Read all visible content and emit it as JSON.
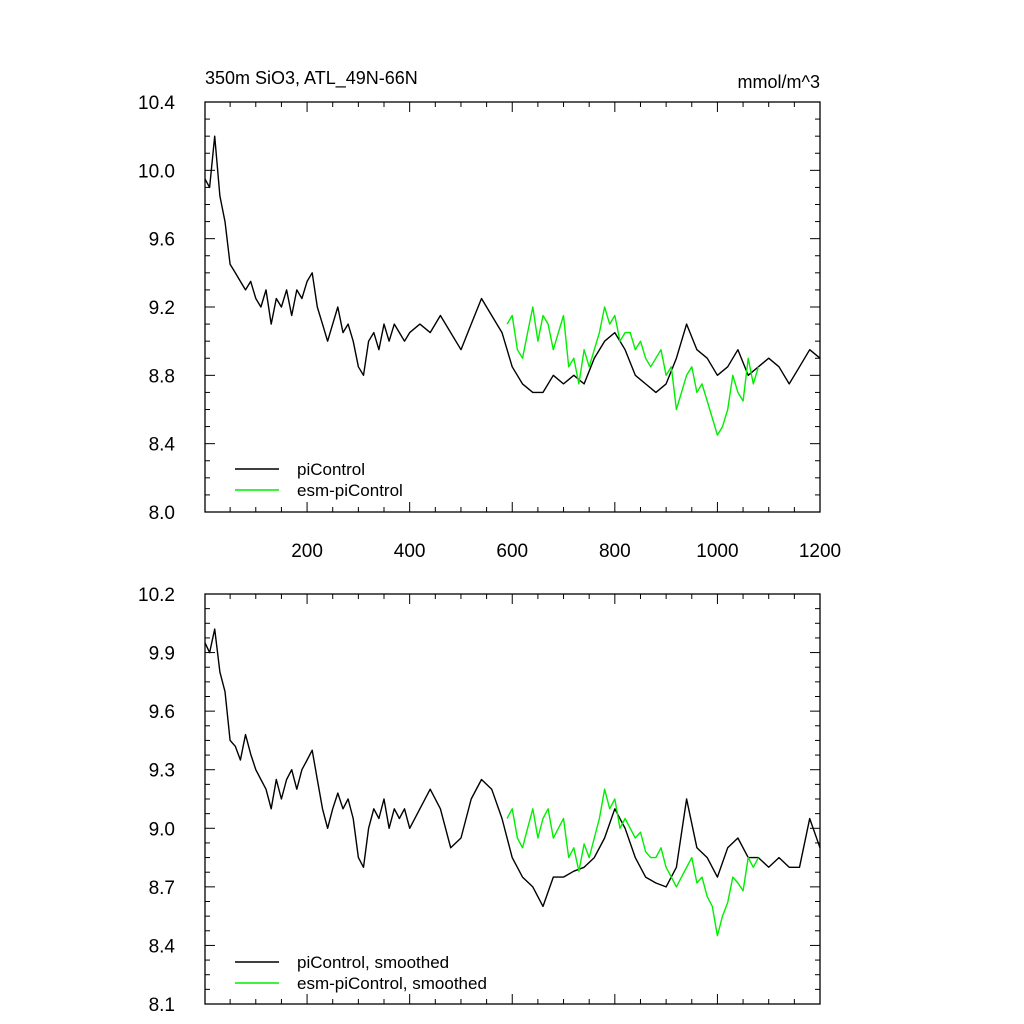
{
  "chart_data": [
    {
      "type": "line",
      "title": "350m SiO3, ATL_49N-66N",
      "units": "mmol/m^3",
      "xlabel": "",
      "ylabel": "",
      "xlim": [
        1,
        1200
      ],
      "ylim": [
        8.0,
        10.4
      ],
      "x_ticks": [
        200,
        400,
        600,
        800,
        1000,
        1200
      ],
      "x_tick_labels": [
        "200",
        "400",
        "600",
        "800",
        "1000",
        "1200"
      ],
      "y_ticks": [
        8.0,
        8.4,
        8.8,
        9.2,
        9.6,
        10.0,
        10.4
      ],
      "y_tick_labels": [
        "8.0",
        "8.4",
        "8.8",
        "9.2",
        "9.6",
        "10.0",
        "10.4"
      ],
      "grid": false,
      "legend_position": "bottom-left",
      "series": [
        {
          "name": "piControl",
          "color": "#000000",
          "x": [
            1,
            10,
            20,
            30,
            40,
            50,
            60,
            70,
            80,
            90,
            100,
            110,
            120,
            130,
            140,
            150,
            160,
            170,
            180,
            190,
            200,
            210,
            220,
            230,
            240,
            250,
            260,
            270,
            280,
            290,
            300,
            310,
            320,
            330,
            340,
            350,
            360,
            370,
            380,
            390,
            400,
            420,
            440,
            460,
            480,
            500,
            520,
            540,
            560,
            580,
            600,
            620,
            640,
            660,
            680,
            700,
            720,
            740,
            760,
            780,
            800,
            820,
            840,
            860,
            880,
            900,
            920,
            940,
            960,
            980,
            1000,
            1020,
            1040,
            1060,
            1080,
            1100,
            1120,
            1140,
            1160,
            1180,
            1200
          ],
          "values": [
            9.95,
            9.9,
            10.2,
            9.85,
            9.7,
            9.45,
            9.4,
            9.35,
            9.3,
            9.35,
            9.25,
            9.2,
            9.3,
            9.1,
            9.25,
            9.2,
            9.3,
            9.15,
            9.3,
            9.25,
            9.35,
            9.4,
            9.2,
            9.1,
            9.0,
            9.1,
            9.2,
            9.05,
            9.1,
            9.0,
            8.85,
            8.8,
            9.0,
            9.05,
            8.95,
            9.1,
            9.0,
            9.1,
            9.05,
            9.0,
            9.05,
            9.1,
            9.05,
            9.15,
            9.05,
            8.95,
            9.1,
            9.25,
            9.15,
            9.05,
            8.85,
            8.75,
            8.7,
            8.7,
            8.8,
            8.75,
            8.8,
            8.75,
            8.9,
            9.0,
            9.05,
            8.95,
            8.8,
            8.75,
            8.7,
            8.75,
            8.9,
            9.1,
            8.95,
            8.9,
            8.8,
            8.85,
            8.95,
            8.8,
            8.85,
            8.9,
            8.85,
            8.75,
            8.85,
            8.95,
            8.9
          ]
        },
        {
          "name": "esm-piControl",
          "color": "#00ee00",
          "x": [
            590,
            600,
            610,
            620,
            630,
            640,
            650,
            660,
            670,
            680,
            690,
            700,
            710,
            720,
            730,
            740,
            750,
            760,
            770,
            780,
            790,
            800,
            810,
            820,
            830,
            840,
            850,
            860,
            870,
            880,
            890,
            900,
            910,
            920,
            930,
            940,
            950,
            960,
            970,
            980,
            990,
            1000,
            1010,
            1020,
            1030,
            1040,
            1050,
            1060,
            1070,
            1080
          ],
          "values": [
            9.1,
            9.15,
            8.95,
            8.9,
            9.05,
            9.2,
            9.0,
            9.15,
            9.1,
            8.95,
            9.05,
            9.15,
            8.85,
            8.9,
            8.75,
            8.95,
            8.85,
            8.95,
            9.05,
            9.2,
            9.1,
            9.15,
            9.0,
            9.05,
            9.05,
            8.95,
            9.0,
            8.9,
            8.85,
            8.9,
            8.95,
            8.8,
            8.85,
            8.6,
            8.7,
            8.8,
            8.85,
            8.7,
            8.75,
            8.65,
            8.55,
            8.45,
            8.5,
            8.6,
            8.8,
            8.7,
            8.65,
            8.9,
            8.75,
            8.85
          ]
        }
      ]
    },
    {
      "type": "line",
      "title": "",
      "xlabel": "",
      "ylabel": "",
      "xlim": [
        1,
        1200
      ],
      "ylim": [
        8.1,
        10.2
      ],
      "x_ticks": [
        200,
        400,
        600,
        800,
        1000,
        1200
      ],
      "y_ticks": [
        8.1,
        8.4,
        8.7,
        9.0,
        9.3,
        9.6,
        9.9,
        10.2
      ],
      "y_tick_labels": [
        "8.1",
        "8.4",
        "8.7",
        "9.0",
        "9.3",
        "9.6",
        "9.9",
        "10.2"
      ],
      "grid": false,
      "legend_position": "bottom-left",
      "series": [
        {
          "name": "piControl, smoothed",
          "color": "#000000",
          "x": [
            1,
            10,
            20,
            30,
            40,
            50,
            60,
            70,
            80,
            90,
            100,
            110,
            120,
            130,
            140,
            150,
            160,
            170,
            180,
            190,
            200,
            210,
            220,
            230,
            240,
            250,
            260,
            270,
            280,
            290,
            300,
            310,
            320,
            330,
            340,
            350,
            360,
            370,
            380,
            390,
            400,
            420,
            440,
            460,
            480,
            500,
            520,
            540,
            560,
            580,
            600,
            620,
            640,
            660,
            680,
            700,
            720,
            740,
            760,
            780,
            800,
            820,
            840,
            860,
            880,
            900,
            920,
            940,
            960,
            980,
            1000,
            1020,
            1040,
            1060,
            1080,
            1100,
            1120,
            1140,
            1160,
            1180,
            1200
          ],
          "values": [
            9.95,
            9.9,
            10.02,
            9.8,
            9.7,
            9.45,
            9.42,
            9.35,
            9.48,
            9.38,
            9.3,
            9.25,
            9.2,
            9.1,
            9.25,
            9.15,
            9.25,
            9.3,
            9.2,
            9.3,
            9.35,
            9.4,
            9.25,
            9.1,
            9.0,
            9.1,
            9.18,
            9.1,
            9.15,
            9.05,
            8.85,
            8.8,
            9.0,
            9.1,
            9.05,
            9.15,
            9.0,
            9.1,
            9.05,
            9.1,
            9.0,
            9.1,
            9.2,
            9.1,
            8.9,
            8.95,
            9.15,
            9.25,
            9.2,
            9.05,
            8.85,
            8.75,
            8.7,
            8.6,
            8.75,
            8.75,
            8.78,
            8.8,
            8.85,
            8.95,
            9.1,
            9.0,
            8.85,
            8.75,
            8.72,
            8.7,
            8.8,
            9.15,
            8.9,
            8.85,
            8.75,
            8.9,
            8.95,
            8.85,
            8.85,
            8.8,
            8.85,
            8.8,
            8.8,
            9.05,
            8.9
          ]
        },
        {
          "name": "esm-piControl, smoothed",
          "color": "#00ee00",
          "x": [
            590,
            600,
            610,
            620,
            630,
            640,
            650,
            660,
            670,
            680,
            690,
            700,
            710,
            720,
            730,
            740,
            750,
            760,
            770,
            780,
            790,
            800,
            810,
            820,
            830,
            840,
            850,
            860,
            870,
            880,
            890,
            900,
            910,
            920,
            930,
            940,
            950,
            960,
            970,
            980,
            990,
            1000,
            1010,
            1020,
            1030,
            1040,
            1050,
            1060,
            1070,
            1080
          ],
          "values": [
            9.05,
            9.1,
            8.95,
            8.9,
            9.0,
            9.1,
            8.95,
            9.05,
            9.1,
            8.95,
            9.0,
            9.05,
            8.85,
            8.9,
            8.78,
            8.92,
            8.85,
            8.95,
            9.05,
            9.2,
            9.1,
            9.15,
            9.0,
            9.05,
            9.0,
            8.95,
            8.98,
            8.88,
            8.85,
            8.85,
            8.9,
            8.8,
            8.75,
            8.7,
            8.75,
            8.8,
            8.85,
            8.72,
            8.75,
            8.65,
            8.6,
            8.45,
            8.55,
            8.62,
            8.75,
            8.72,
            8.68,
            8.85,
            8.8,
            8.85
          ]
        }
      ]
    }
  ]
}
